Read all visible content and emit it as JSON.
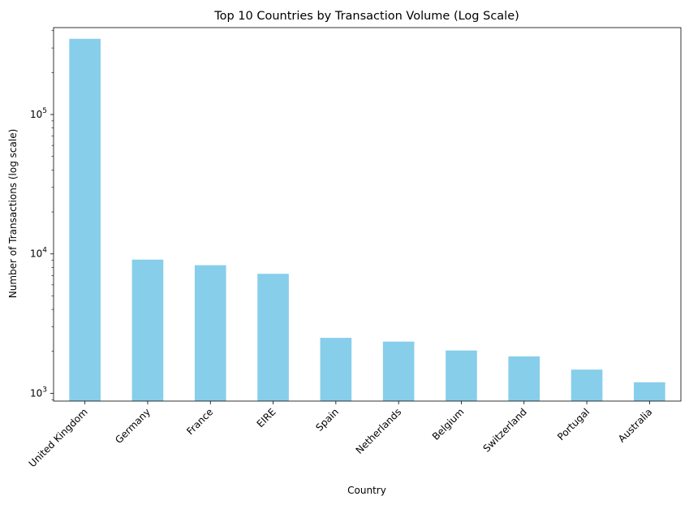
{
  "chart_data": {
    "type": "bar",
    "title": "Top 10 Countries by Transaction Volume (Log Scale)",
    "xlabel": "Country",
    "ylabel": "Number of Transactions (log scale)",
    "yscale": "log",
    "ylim": [
      880,
      420000
    ],
    "yticks": [
      {
        "value": 1000,
        "base": "10",
        "exp": "3"
      },
      {
        "value": 10000,
        "base": "10",
        "exp": "4"
      },
      {
        "value": 100000,
        "base": "10",
        "exp": "5"
      }
    ],
    "categories": [
      "United Kingdom",
      "Germany",
      "France",
      "EIRE",
      "Spain",
      "Netherlands",
      "Belgium",
      "Switzerland",
      "Portugal",
      "Australia"
    ],
    "values": [
      349000,
      9100,
      8300,
      7200,
      2500,
      2350,
      2030,
      1840,
      1480,
      1200
    ],
    "bar_color": "#87ceeb",
    "grid": false,
    "legend": "none"
  }
}
